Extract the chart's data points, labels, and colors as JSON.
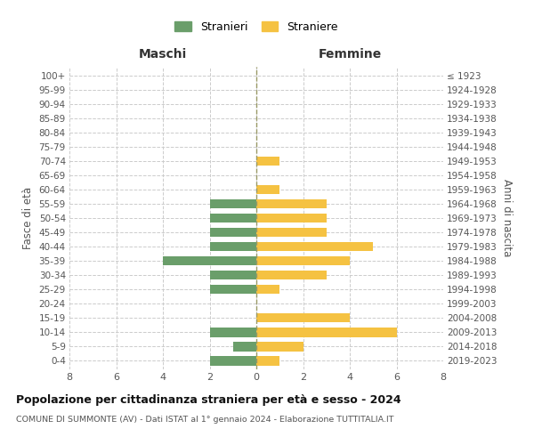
{
  "age_groups": [
    "0-4",
    "5-9",
    "10-14",
    "15-19",
    "20-24",
    "25-29",
    "30-34",
    "35-39",
    "40-44",
    "45-49",
    "50-54",
    "55-59",
    "60-64",
    "65-69",
    "70-74",
    "75-79",
    "80-84",
    "85-89",
    "90-94",
    "95-99",
    "100+"
  ],
  "birth_years": [
    "2019-2023",
    "2014-2018",
    "2009-2013",
    "2004-2008",
    "1999-2003",
    "1994-1998",
    "1989-1993",
    "1984-1988",
    "1979-1983",
    "1974-1978",
    "1969-1973",
    "1964-1968",
    "1959-1963",
    "1954-1958",
    "1949-1953",
    "1944-1948",
    "1939-1943",
    "1934-1938",
    "1929-1933",
    "1924-1928",
    "≤ 1923"
  ],
  "maschi": [
    2,
    1,
    2,
    0,
    0,
    2,
    2,
    4,
    2,
    2,
    2,
    2,
    0,
    0,
    0,
    0,
    0,
    0,
    0,
    0,
    0
  ],
  "femmine": [
    1,
    2,
    6,
    4,
    0,
    1,
    3,
    4,
    5,
    3,
    3,
    3,
    1,
    0,
    1,
    0,
    0,
    0,
    0,
    0,
    0
  ],
  "color_maschi": "#6a9e6a",
  "color_femmine": "#f5c242",
  "title": "Popolazione per cittadinanza straniera per età e sesso - 2024",
  "subtitle": "COMUNE DI SUMMONTE (AV) - Dati ISTAT al 1° gennaio 2024 - Elaborazione TUTTITALIA.IT",
  "label_maschi": "Maschi",
  "label_femmine": "Femmine",
  "ylabel_left": "Fasce di età",
  "ylabel_right": "Anni di nascita",
  "legend_maschi": "Stranieri",
  "legend_femmine": "Straniere",
  "xlim": 8,
  "background_color": "#ffffff",
  "grid_color": "#cccccc"
}
